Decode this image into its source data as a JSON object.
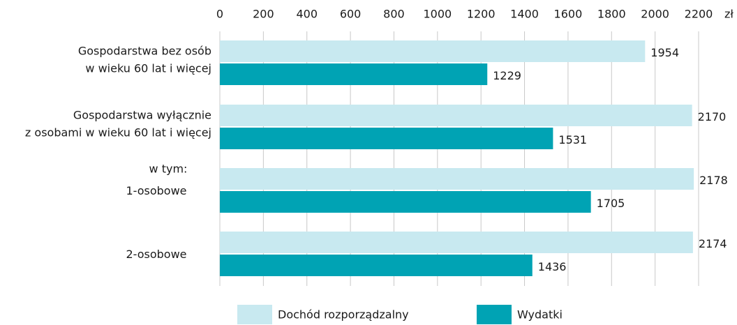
{
  "chart_data": {
    "type": "barh",
    "categories": [
      "Gospodarstwa bez osób\nw wieku 60 lat i więcej",
      "Gospodarstwa wyłącznie\nz osobami w wieku 60 lat i więcej",
      "1-osobowe",
      "2-osobowe"
    ],
    "annotation": "w tym:",
    "xlabel": "zł",
    "series": [
      {
        "name": "Dochód rozporządzalny",
        "color": "#c8e9f0",
        "values": [
          1954,
          2170,
          2178,
          2174
        ]
      },
      {
        "name": "Wydatki",
        "color": "#00a3b4",
        "values": [
          1229,
          1531,
          1705,
          1436
        ]
      }
    ],
    "xlim": [
      0,
      2200
    ],
    "xticks": [
      0,
      200,
      400,
      600,
      800,
      1000,
      1200,
      1400,
      1600,
      1800,
      2000,
      2200
    ],
    "grid": true,
    "legend": "bottom"
  }
}
